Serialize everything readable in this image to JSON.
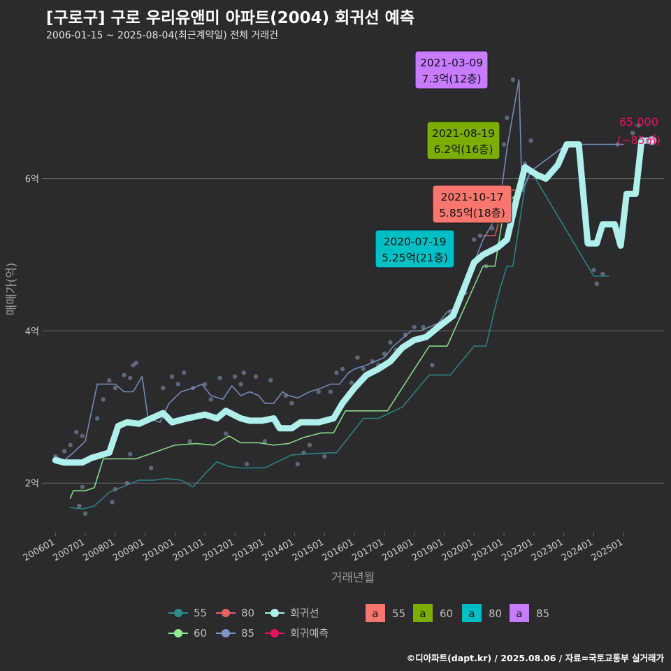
{
  "title": "[구로구] 구로 우리유앤미 아파트(2004) 회귀선 예측",
  "subtitle": "2006-01-15 ~ 2025-08-04(최근계약일) 전체 거래건",
  "credit": "©디아파트(dapt.kr) / 2025.08.06 / 자료=국토교통부 실거래가",
  "colors": {
    "background": "#2b2a2d",
    "grid": "#6a6a6a",
    "axis_text": "#cfcfcf",
    "s55": "#2e8b8b",
    "s60": "#90ee90",
    "s80": "#e76161",
    "s85": "#7f95c4",
    "regression": "#aff0ec",
    "forecast": "#e8135f"
  },
  "chart_data": {
    "type": "line",
    "title": "[구로구] 구로 우리유앤미 아파트(2004) 회귀선 예측",
    "xlabel": "거래년월",
    "ylabel": "매매가(억)",
    "xlim": [
      2005.55,
      2026.35
    ],
    "ylim": [
      1.35,
      7.75
    ],
    "x_ticks": [
      2006,
      2007,
      2008,
      2009,
      2010,
      2011,
      2012,
      2013,
      2014,
      2015,
      2016,
      2017,
      2018,
      2019,
      2020,
      2021,
      2022,
      2023,
      2024,
      2025
    ],
    "x_tick_labels": [
      "200601",
      "200701",
      "200801",
      "200901",
      "201001",
      "201101",
      "201201",
      "201301",
      "201401",
      "201501",
      "201601",
      "201701",
      "201801",
      "201901",
      "202001",
      "202101",
      "202201",
      "202301",
      "202401",
      "202501"
    ],
    "y_ticks": [
      2,
      4,
      6
    ],
    "y_tick_labels": [
      "2억",
      "4억",
      "6억"
    ],
    "series": [
      {
        "name": "55",
        "kind": "line",
        "points": [
          [
            2006.5,
            1.68
          ],
          [
            2006.9,
            1.66
          ],
          [
            2007.3,
            1.7
          ],
          [
            2007.8,
            1.88
          ],
          [
            2008.3,
            1.96
          ],
          [
            2008.8,
            2.04
          ],
          [
            2009.3,
            2.04
          ],
          [
            2009.7,
            2.06
          ],
          [
            2010.2,
            2.04
          ],
          [
            2010.6,
            1.95
          ],
          [
            2011.0,
            2.12
          ],
          [
            2011.4,
            2.28
          ],
          [
            2011.8,
            2.22
          ],
          [
            2012.2,
            2.2
          ],
          [
            2013.0,
            2.2
          ],
          [
            2013.9,
            2.37
          ],
          [
            2014.7,
            2.39
          ],
          [
            2015.4,
            2.4
          ],
          [
            2016.3,
            2.85
          ],
          [
            2016.8,
            2.85
          ],
          [
            2017.6,
            3.0
          ],
          [
            2018.5,
            3.42
          ],
          [
            2019.2,
            3.42
          ],
          [
            2020.0,
            3.8
          ],
          [
            2020.4,
            3.8
          ],
          [
            2020.7,
            4.3
          ],
          [
            2020.9,
            4.6
          ],
          [
            2021.1,
            4.85
          ],
          [
            2021.3,
            4.85
          ],
          [
            2021.7,
            5.9
          ],
          [
            2021.9,
            6.1
          ],
          [
            2024.0,
            4.72
          ],
          [
            2024.5,
            4.72
          ]
        ]
      },
      {
        "name": "60",
        "kind": "line",
        "points": [
          [
            2006.5,
            1.8
          ],
          [
            2006.6,
            1.9
          ],
          [
            2007.0,
            1.9
          ],
          [
            2007.3,
            1.94
          ],
          [
            2007.6,
            2.32
          ],
          [
            2008.4,
            2.32
          ],
          [
            2008.7,
            2.32
          ],
          [
            2010.0,
            2.5
          ],
          [
            2010.7,
            2.52
          ],
          [
            2011.3,
            2.5
          ],
          [
            2011.8,
            2.62
          ],
          [
            2012.2,
            2.53
          ],
          [
            2012.8,
            2.53
          ],
          [
            2013.3,
            2.5
          ],
          [
            2013.8,
            2.52
          ],
          [
            2014.3,
            2.6
          ],
          [
            2014.9,
            2.66
          ],
          [
            2015.3,
            2.66
          ],
          [
            2015.7,
            2.95
          ],
          [
            2016.1,
            2.95
          ],
          [
            2016.7,
            2.95
          ],
          [
            2017.1,
            2.95
          ],
          [
            2018.5,
            3.8
          ],
          [
            2019.1,
            3.8
          ],
          [
            2020.3,
            4.85
          ],
          [
            2020.7,
            4.85
          ],
          [
            2021.0,
            5.6
          ],
          [
            2021.4,
            5.8
          ],
          [
            2021.7,
            6.1
          ],
          [
            2021.9,
            6.1
          ],
          [
            2022.1,
            6.0
          ],
          [
            2022.4,
            6.0
          ]
        ]
      },
      {
        "name": "80",
        "kind": "line",
        "points": [
          [
            2020.3,
            5.25
          ],
          [
            2020.7,
            5.25
          ],
          [
            2021.1,
            5.85
          ],
          [
            2021.4,
            5.85
          ]
        ]
      },
      {
        "name": "85",
        "kind": "line",
        "points": [
          [
            2006.0,
            2.35
          ],
          [
            2006.3,
            2.3
          ],
          [
            2006.6,
            2.4
          ],
          [
            2007.0,
            2.55
          ],
          [
            2007.4,
            3.3
          ],
          [
            2007.7,
            3.3
          ],
          [
            2008.0,
            3.3
          ],
          [
            2008.3,
            3.2
          ],
          [
            2008.6,
            3.2
          ],
          [
            2008.9,
            3.4
          ],
          [
            2009.1,
            2.85
          ],
          [
            2009.5,
            2.8
          ],
          [
            2009.8,
            3.05
          ],
          [
            2010.2,
            3.2
          ],
          [
            2010.6,
            3.25
          ],
          [
            2010.9,
            3.3
          ],
          [
            2011.2,
            3.15
          ],
          [
            2011.6,
            3.1
          ],
          [
            2011.9,
            3.28
          ],
          [
            2012.2,
            3.15
          ],
          [
            2012.5,
            3.2
          ],
          [
            2012.8,
            3.15
          ],
          [
            2013.0,
            3.05
          ],
          [
            2013.3,
            3.05
          ],
          [
            2013.6,
            3.2
          ],
          [
            2013.8,
            3.15
          ],
          [
            2014.1,
            3.12
          ],
          [
            2014.5,
            3.2
          ],
          [
            2014.9,
            3.25
          ],
          [
            2015.2,
            3.3
          ],
          [
            2015.5,
            3.3
          ],
          [
            2015.8,
            3.45
          ],
          [
            2016.0,
            3.5
          ],
          [
            2016.4,
            3.55
          ],
          [
            2016.7,
            3.6
          ],
          [
            2017.0,
            3.65
          ],
          [
            2017.3,
            3.8
          ],
          [
            2017.6,
            3.9
          ],
          [
            2017.9,
            4.0
          ],
          [
            2018.2,
            4.0
          ],
          [
            2018.5,
            4.05
          ],
          [
            2018.8,
            4.1
          ],
          [
            2019.1,
            4.25
          ],
          [
            2019.4,
            4.3
          ],
          [
            2019.7,
            4.5
          ],
          [
            2020.0,
            4.9
          ],
          [
            2020.3,
            5.2
          ],
          [
            2020.6,
            5.4
          ],
          [
            2020.9,
            5.8
          ],
          [
            2021.1,
            6.4
          ],
          [
            2021.3,
            6.85
          ],
          [
            2021.5,
            7.3
          ],
          [
            2021.6,
            5.85
          ],
          [
            2021.9,
            6.1
          ],
          [
            2023.1,
            6.45
          ],
          [
            2023.6,
            6.45
          ],
          [
            2024.7,
            6.45
          ],
          [
            2025.0,
            6.45
          ]
        ]
      },
      {
        "name": "회귀선",
        "kind": "regression",
        "points": [
          [
            2006.0,
            2.3
          ],
          [
            2006.3,
            2.27
          ],
          [
            2006.9,
            2.27
          ],
          [
            2007.2,
            2.33
          ],
          [
            2007.8,
            2.4
          ],
          [
            2008.1,
            2.75
          ],
          [
            2008.4,
            2.8
          ],
          [
            2008.8,
            2.78
          ],
          [
            2009.2,
            2.85
          ],
          [
            2009.6,
            2.92
          ],
          [
            2009.9,
            2.8
          ],
          [
            2010.4,
            2.85
          ],
          [
            2011.0,
            2.9
          ],
          [
            2011.4,
            2.85
          ],
          [
            2011.7,
            2.95
          ],
          [
            2012.2,
            2.85
          ],
          [
            2012.5,
            2.82
          ],
          [
            2012.9,
            2.82
          ],
          [
            2013.3,
            2.85
          ],
          [
            2013.5,
            2.72
          ],
          [
            2013.9,
            2.72
          ],
          [
            2014.2,
            2.8
          ],
          [
            2014.8,
            2.8
          ],
          [
            2015.3,
            2.85
          ],
          [
            2015.6,
            3.05
          ],
          [
            2016.0,
            3.25
          ],
          [
            2016.4,
            3.42
          ],
          [
            2016.8,
            3.5
          ],
          [
            2017.2,
            3.6
          ],
          [
            2017.6,
            3.78
          ],
          [
            2018.0,
            3.88
          ],
          [
            2018.4,
            3.92
          ],
          [
            2018.8,
            4.05
          ],
          [
            2019.3,
            4.2
          ],
          [
            2019.7,
            4.6
          ],
          [
            2020.0,
            4.9
          ],
          [
            2020.3,
            5.0
          ],
          [
            2020.8,
            5.1
          ],
          [
            2021.1,
            5.2
          ],
          [
            2021.4,
            5.7
          ],
          [
            2021.7,
            6.15
          ],
          [
            2022.1,
            6.05
          ],
          [
            2022.4,
            6.0
          ],
          [
            2022.8,
            6.18
          ],
          [
            2023.1,
            6.45
          ],
          [
            2023.5,
            6.45
          ],
          [
            2023.8,
            5.15
          ],
          [
            2024.1,
            5.15
          ],
          [
            2024.3,
            5.4
          ],
          [
            2024.7,
            5.4
          ],
          [
            2024.9,
            5.12
          ],
          [
            2025.1,
            5.8
          ],
          [
            2025.4,
            5.8
          ],
          [
            2025.6,
            6.5
          ],
          [
            2025.8,
            6.5
          ],
          [
            2025.95,
            6.5
          ]
        ]
      }
    ],
    "scatter_points": [
      [
        2006.0,
        2.35
      ],
      [
        2006.1,
        2.3
      ],
      [
        2006.3,
        2.42
      ],
      [
        2006.5,
        2.5
      ],
      [
        2006.7,
        2.67
      ],
      [
        2006.9,
        2.62
      ],
      [
        2006.8,
        1.7
      ],
      [
        2007.0,
        1.6
      ],
      [
        2006.9,
        1.95
      ],
      [
        2007.4,
        2.85
      ],
      [
        2007.6,
        3.1
      ],
      [
        2007.8,
        3.35
      ],
      [
        2008.0,
        3.25
      ],
      [
        2007.9,
        1.75
      ],
      [
        2008.0,
        1.92
      ],
      [
        2008.3,
        3.42
      ],
      [
        2008.5,
        3.38
      ],
      [
        2008.6,
        3.55
      ],
      [
        2008.4,
        2.0
      ],
      [
        2008.5,
        2.38
      ],
      [
        2008.7,
        3.58
      ],
      [
        2009.2,
        2.2
      ],
      [
        2009.4,
        2.9
      ],
      [
        2009.6,
        3.25
      ],
      [
        2009.9,
        3.4
      ],
      [
        2010.1,
        3.3
      ],
      [
        2010.3,
        3.45
      ],
      [
        2010.5,
        2.55
      ],
      [
        2010.6,
        3.25
      ],
      [
        2011.0,
        3.3
      ],
      [
        2011.2,
        3.1
      ],
      [
        2011.5,
        3.38
      ],
      [
        2011.7,
        2.65
      ],
      [
        2012.0,
        3.4
      ],
      [
        2012.2,
        3.3
      ],
      [
        2012.3,
        3.45
      ],
      [
        2012.4,
        2.25
      ],
      [
        2012.7,
        3.4
      ],
      [
        2013.0,
        2.55
      ],
      [
        2013.2,
        3.35
      ],
      [
        2013.4,
        2.75
      ],
      [
        2013.7,
        3.15
      ],
      [
        2013.9,
        3.05
      ],
      [
        2014.1,
        2.25
      ],
      [
        2014.3,
        2.4
      ],
      [
        2014.5,
        2.5
      ],
      [
        2014.8,
        3.2
      ],
      [
        2015.0,
        2.35
      ],
      [
        2015.2,
        3.2
      ],
      [
        2015.4,
        3.45
      ],
      [
        2015.6,
        3.5
      ],
      [
        2015.9,
        3.32
      ],
      [
        2016.1,
        3.65
      ],
      [
        2016.3,
        3.5
      ],
      [
        2016.6,
        3.6
      ],
      [
        2016.8,
        3.55
      ],
      [
        2017.0,
        3.7
      ],
      [
        2017.2,
        3.85
      ],
      [
        2017.4,
        3.75
      ],
      [
        2017.7,
        3.95
      ],
      [
        2018.0,
        4.05
      ],
      [
        2018.3,
        4.05
      ],
      [
        2018.6,
        3.55
      ],
      [
        2018.9,
        4.1
      ],
      [
        2019.2,
        4.25
      ],
      [
        2019.4,
        4.3
      ],
      [
        2019.7,
        4.5
      ],
      [
        2020.0,
        5.2
      ],
      [
        2020.2,
        5.25
      ],
      [
        2020.4,
        4.85
      ],
      [
        2020.6,
        5.35
      ],
      [
        2020.8,
        5.85
      ],
      [
        2021.0,
        6.45
      ],
      [
        2021.1,
        6.8
      ],
      [
        2021.3,
        7.3
      ],
      [
        2021.6,
        5.85
      ],
      [
        2021.7,
        6.2
      ],
      [
        2021.9,
        6.5
      ],
      [
        2024.0,
        4.8
      ],
      [
        2024.1,
        4.62
      ],
      [
        2024.3,
        4.75
      ],
      [
        2024.8,
        6.45
      ],
      [
        2025.3,
        6.6
      ],
      [
        2025.5,
        6.7
      ],
      [
        2025.6,
        6.4
      ]
    ],
    "forecast_point": {
      "x": 2025.95,
      "y": 6.5,
      "label": "65,000",
      "sublabel": "(~85㎡)"
    },
    "annotations": [
      {
        "date": "2021-03-09",
        "value": "7.3억(12층)",
        "x": 2021.18,
        "y": 7.3,
        "series": "85",
        "fill": "#c77cff"
      },
      {
        "date": "2021-08-19",
        "value": "6.2억(16층)",
        "x": 2021.63,
        "y": 6.2,
        "series": "60",
        "fill": "#7cae00"
      },
      {
        "date": "2021-10-17",
        "value": "5.85억(18층)",
        "x": 2021.79,
        "y": 5.85,
        "series": "55",
        "fill": "#f8766d"
      },
      {
        "date": "2020-07-19",
        "value": "5.25억(21층)",
        "x": 2020.55,
        "y": 5.25,
        "series": "80",
        "fill": "#00bfc4"
      }
    ],
    "legend_lines": [
      {
        "label": "55",
        "color": "#2e8b8b"
      },
      {
        "label": "80",
        "color": "#e76161"
      },
      {
        "label": "회귀선",
        "color": "#aff0ec"
      },
      {
        "label": "60",
        "color": "#90ee90"
      },
      {
        "label": "85",
        "color": "#7f95c4"
      },
      {
        "label": "회귀예측",
        "color": "#e8135f"
      }
    ],
    "legend_boxes": [
      {
        "glyph": "a",
        "label": "55",
        "fill": "#f8766d"
      },
      {
        "glyph": "a",
        "label": "60",
        "fill": "#7cae00"
      },
      {
        "glyph": "a",
        "label": "80",
        "fill": "#00bfc4"
      },
      {
        "glyph": "a",
        "label": "85",
        "fill": "#c77cff"
      }
    ]
  }
}
